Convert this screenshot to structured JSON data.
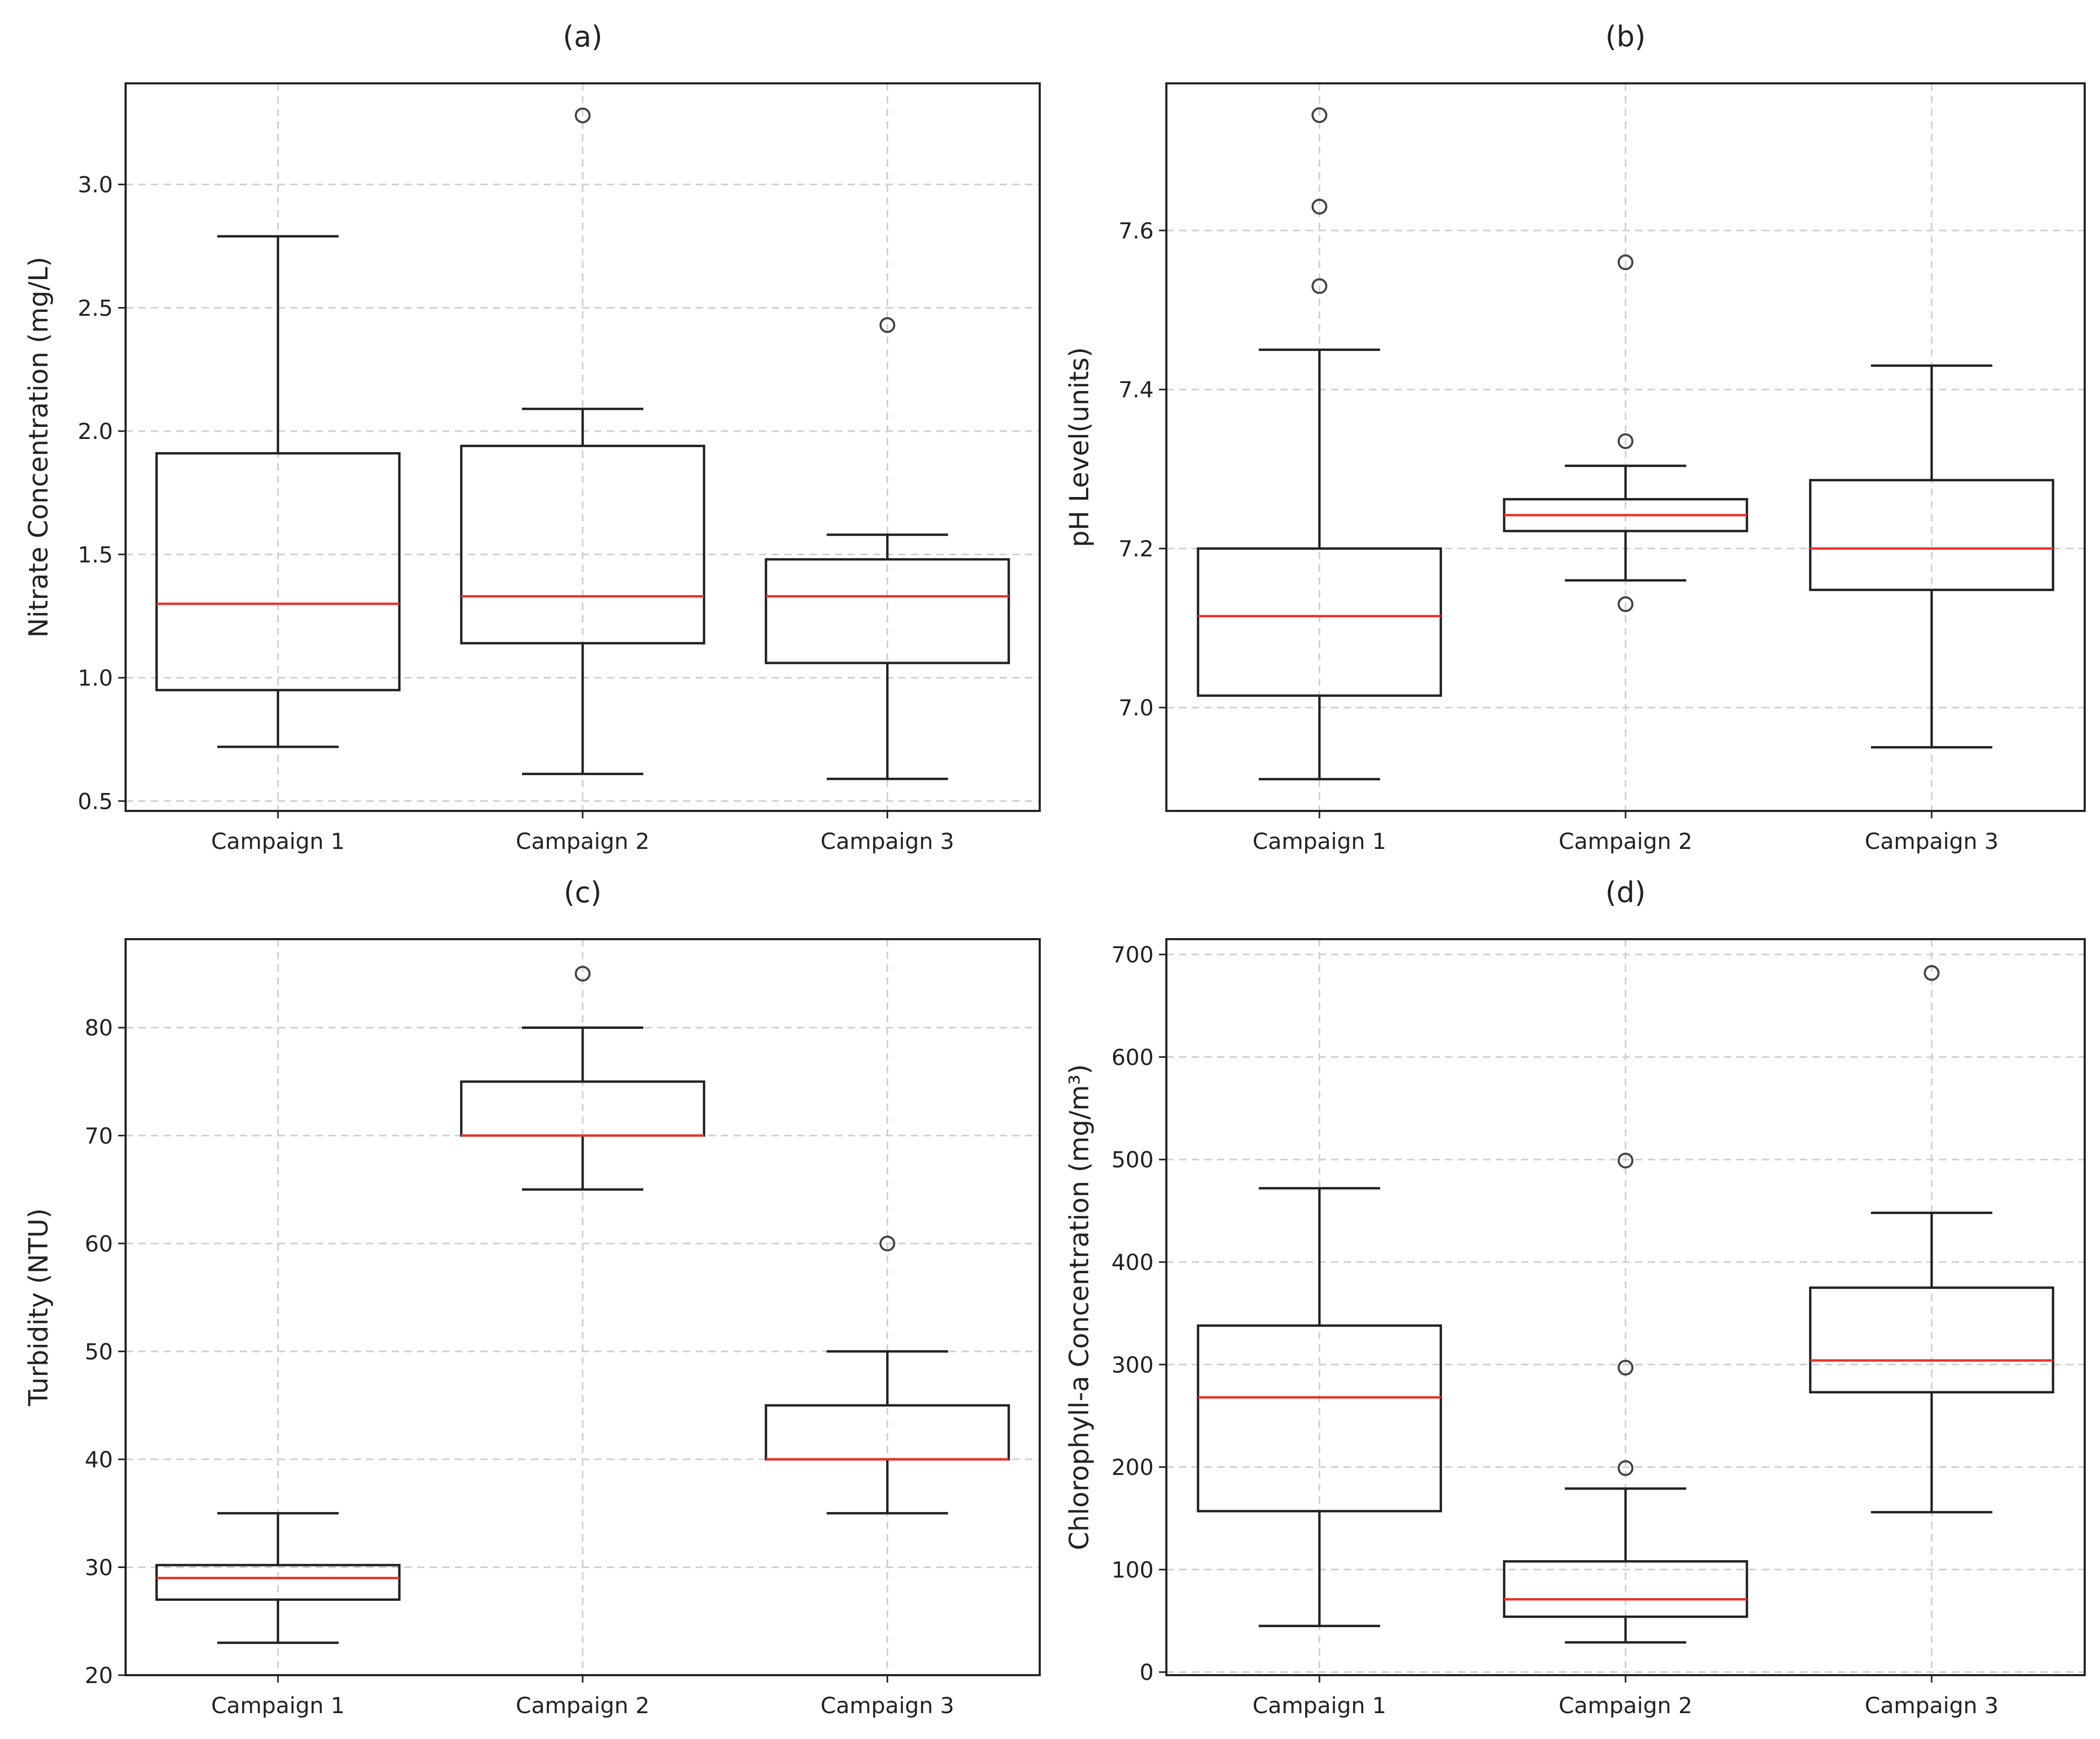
{
  "figure": {
    "colors": {
      "box": "#222222",
      "median": "#e8322a",
      "grid": "#cfcfcf",
      "outlier_edge": "#444444",
      "axes": "#222222"
    }
  },
  "chart_data": [
    {
      "type": "box",
      "title": "(a)",
      "xlabel": "",
      "ylabel": "Nitrate Concentration (mg/L)",
      "categories": [
        "Campaign 1",
        "Campaign 2",
        "Campaign 3"
      ],
      "ylim": [
        0.46,
        3.41
      ],
      "yticks": [
        0.5,
        1.0,
        1.5,
        2.0,
        2.5,
        3.0
      ],
      "ytick_labels": [
        "0.5",
        "1.0",
        "1.5",
        "2.0",
        "2.5",
        "3.0"
      ],
      "grid": true,
      "boxes": [
        {
          "whislo": 0.72,
          "q1": 0.95,
          "med": 1.3,
          "q3": 1.91,
          "whishi": 2.79,
          "fliers": []
        },
        {
          "whislo": 0.61,
          "q1": 1.14,
          "med": 1.33,
          "q3": 1.94,
          "whishi": 2.09,
          "fliers": [
            3.28
          ]
        },
        {
          "whislo": 0.59,
          "q1": 1.06,
          "med": 1.33,
          "q3": 1.48,
          "whishi": 1.58,
          "fliers": [
            2.43
          ]
        }
      ]
    },
    {
      "type": "box",
      "title": "(b)",
      "xlabel": "",
      "ylabel": "pH Level(units)",
      "categories": [
        "Campaign 1",
        "Campaign 2",
        "Campaign 3"
      ],
      "ylim": [
        6.87,
        7.785
      ],
      "yticks": [
        7.0,
        7.2,
        7.4,
        7.6
      ],
      "ytick_labels": [
        "7.0",
        "7.2",
        "7.4",
        "7.6"
      ],
      "grid": true,
      "boxes": [
        {
          "whislo": 6.91,
          "q1": 7.015,
          "med": 7.115,
          "q3": 7.2,
          "whishi": 7.45,
          "fliers": [
            7.53,
            7.63,
            7.745
          ]
        },
        {
          "whislo": 7.16,
          "q1": 7.222,
          "med": 7.242,
          "q3": 7.262,
          "whishi": 7.304,
          "fliers": [
            7.13,
            7.335,
            7.56
          ]
        },
        {
          "whislo": 6.95,
          "q1": 7.148,
          "med": 7.2,
          "q3": 7.286,
          "whishi": 7.43,
          "fliers": []
        }
      ]
    },
    {
      "type": "box",
      "title": "(c)",
      "xlabel": "",
      "ylabel": "Turbidity (NTU)",
      "categories": [
        "Campaign 1",
        "Campaign 2",
        "Campaign 3"
      ],
      "ylim": [
        20,
        88.2
      ],
      "yticks": [
        20,
        30,
        40,
        50,
        60,
        70,
        80
      ],
      "ytick_labels": [
        "20",
        "30",
        "40",
        "50",
        "60",
        "70",
        "80"
      ],
      "grid": true,
      "boxes": [
        {
          "whislo": 23,
          "q1": 27,
          "med": 29,
          "q3": 30.2,
          "whishi": 35,
          "fliers": []
        },
        {
          "whislo": 65,
          "q1": 70,
          "med": 70,
          "q3": 75,
          "whishi": 80,
          "fliers": [
            85
          ]
        },
        {
          "whislo": 35,
          "q1": 40,
          "med": 40,
          "q3": 45,
          "whishi": 50,
          "fliers": [
            60
          ]
        }
      ]
    },
    {
      "type": "box",
      "title": "(d)",
      "xlabel": "",
      "ylabel": "Chlorophyll-a Concentration (mg/m³)",
      "categories": [
        "Campaign 1",
        "Campaign 2",
        "Campaign 3"
      ],
      "ylim": [
        -3,
        715
      ],
      "yticks": [
        0,
        100,
        200,
        300,
        400,
        500,
        600,
        700
      ],
      "ytick_labels": [
        "0",
        "100",
        "200",
        "300",
        "400",
        "500",
        "600",
        "700"
      ],
      "grid": true,
      "boxes": [
        {
          "whislo": 45,
          "q1": 157,
          "med": 268,
          "q3": 338,
          "whishi": 472,
          "fliers": []
        },
        {
          "whislo": 29,
          "q1": 54,
          "med": 71,
          "q3": 108,
          "whishi": 179,
          "fliers": [
            199,
            297,
            499
          ]
        },
        {
          "whislo": 156,
          "q1": 273,
          "med": 304,
          "q3": 375,
          "whishi": 448,
          "fliers": [
            682
          ]
        }
      ]
    }
  ]
}
